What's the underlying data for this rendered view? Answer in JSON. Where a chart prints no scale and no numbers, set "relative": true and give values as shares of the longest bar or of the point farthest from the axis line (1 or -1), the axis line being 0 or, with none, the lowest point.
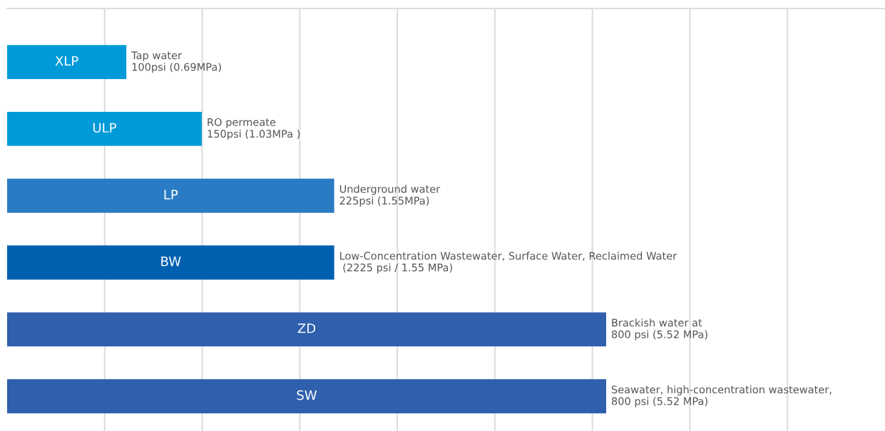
{
  "chart_data": {
    "type": "bar",
    "orientation": "horizontal",
    "relative": true,
    "categories": [
      "XLP",
      "ULP",
      "LP",
      "BW",
      "ZD",
      "SW"
    ],
    "values": [
      0.199,
      0.325,
      0.546,
      0.546,
      1,
      1
    ],
    "colors": [
      "#009ad9",
      "#009ad9",
      "#2a7bc4",
      "#0060b0",
      "#2f5fad",
      "#2f5fad"
    ],
    "annotations": [
      "Tap water\n100psi (0.69MPa)",
      "RO permeate\n150psi (1.03MPa )",
      "Underground water\n225psi (1.55MPa)",
      "Low-Concentration Wastewater, Surface Water, Reclaimed Water\n (2225 psi / 1.55 MPa)",
      "Brackish water at\n800 psi (5.52 MPa)",
      "Seawater, high-concentration wastewater,\n800 psi (5.52 MPa)"
    ],
    "grid": "x"
  }
}
